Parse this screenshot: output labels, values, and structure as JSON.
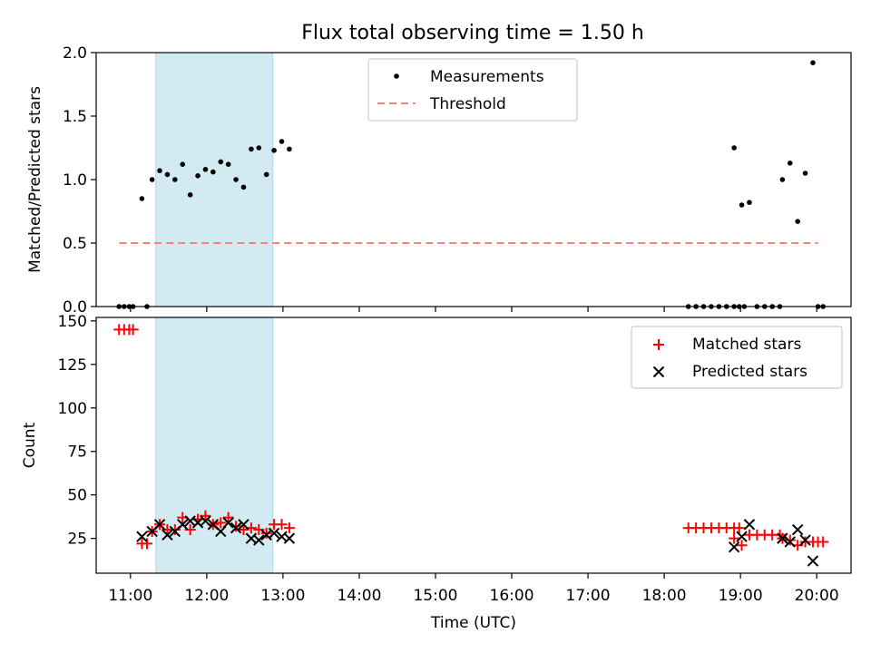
{
  "figure": {
    "title": "Flux total observing time = 1.50 h"
  },
  "colors": {
    "highlight": "#add8e6",
    "threshold": "#ff7f7f",
    "matched": "#ff0000",
    "predicted": "#000000",
    "measurement": "#000000"
  },
  "chart_data": [
    {
      "type": "scatter",
      "ylabel": "Matched/Predicted stars",
      "xlim": [
        "10:33",
        "20:27"
      ],
      "ylim": [
        0,
        2.0
      ],
      "y_ticks": [
        0.0,
        0.5,
        1.0,
        1.5,
        2.0
      ],
      "y_tick_labels": [
        "0.0",
        "0.5",
        "1.0",
        "1.5",
        "2.0"
      ],
      "highlight_span": [
        "11:20",
        "12:52"
      ],
      "legend": {
        "position": "upper-center",
        "entries": [
          {
            "label": "Measurements",
            "marker": "dot"
          },
          {
            "label": "Threshold",
            "marker": "dashed-line"
          }
        ]
      },
      "threshold": {
        "name": "Threshold",
        "y": 0.5,
        "x": [
          "10:51",
          "20:01"
        ]
      },
      "series": [
        {
          "name": "Measurements",
          "points": [
            [
              "10:51",
              0
            ],
            [
              "10:55",
              0
            ],
            [
              "10:59",
              0
            ],
            [
              "11:02",
              0
            ],
            [
              "11:09",
              0.85
            ],
            [
              "11:13",
              0
            ],
            [
              "11:17",
              1.0
            ],
            [
              "11:23",
              1.07
            ],
            [
              "11:29",
              1.04
            ],
            [
              "11:35",
              1.0
            ],
            [
              "11:41",
              1.12
            ],
            [
              "11:47",
              0.88
            ],
            [
              "11:53",
              1.03
            ],
            [
              "11:59",
              1.08
            ],
            [
              "12:05",
              1.06
            ],
            [
              "12:11",
              1.14
            ],
            [
              "12:17",
              1.12
            ],
            [
              "12:23",
              1.0
            ],
            [
              "12:29",
              0.94
            ],
            [
              "12:35",
              1.24
            ],
            [
              "12:41",
              1.25
            ],
            [
              "12:47",
              1.04
            ],
            [
              "12:53",
              1.23
            ],
            [
              "12:59",
              1.3
            ],
            [
              "13:05",
              1.24
            ],
            [
              "18:19",
              0
            ],
            [
              "18:25",
              0
            ],
            [
              "18:31",
              0
            ],
            [
              "18:37",
              0
            ],
            [
              "18:43",
              0
            ],
            [
              "18:49",
              0
            ],
            [
              "18:55",
              0
            ],
            [
              "18:59",
              0
            ],
            [
              "19:03",
              0
            ],
            [
              "18:55",
              1.25
            ],
            [
              "19:01",
              0.8
            ],
            [
              "19:07",
              0.82
            ],
            [
              "19:13",
              0
            ],
            [
              "19:19",
              0
            ],
            [
              "19:25",
              0
            ],
            [
              "19:31",
              0
            ],
            [
              "19:33",
              1.0
            ],
            [
              "19:39",
              1.13
            ],
            [
              "19:45",
              0.67
            ],
            [
              "19:51",
              1.05
            ],
            [
              "19:57",
              1.92
            ],
            [
              "20:01",
              0
            ],
            [
              "20:05",
              0
            ]
          ]
        }
      ]
    },
    {
      "type": "scatter",
      "ylabel": "Count",
      "xlabel": "Time (UTC)",
      "xlim": [
        "10:33",
        "20:27"
      ],
      "ylim": [
        5,
        152
      ],
      "y_ticks": [
        25,
        50,
        75,
        100,
        125,
        150
      ],
      "x_ticks": [
        "11:00",
        "12:00",
        "13:00",
        "14:00",
        "15:00",
        "16:00",
        "17:00",
        "18:00",
        "19:00",
        "20:00"
      ],
      "highlight_span": [
        "11:20",
        "12:52"
      ],
      "legend": {
        "position": "upper-right",
        "entries": [
          {
            "label": "Matched stars",
            "marker": "plus"
          },
          {
            "label": "Predicted stars",
            "marker": "x"
          }
        ]
      },
      "series": [
        {
          "name": "Matched stars",
          "points": [
            [
              "10:51",
              145
            ],
            [
              "10:55",
              145
            ],
            [
              "10:59",
              145
            ],
            [
              "11:02",
              145
            ],
            [
              "11:09",
              22
            ],
            [
              "11:13",
              22
            ],
            [
              "11:17",
              29
            ],
            [
              "11:23",
              33
            ],
            [
              "11:29",
              30
            ],
            [
              "11:35",
              30
            ],
            [
              "11:41",
              37
            ],
            [
              "11:47",
              30
            ],
            [
              "11:53",
              36
            ],
            [
              "11:59",
              38
            ],
            [
              "12:05",
              33
            ],
            [
              "12:11",
              34
            ],
            [
              "12:17",
              37
            ],
            [
              "12:23",
              32
            ],
            [
              "12:29",
              30
            ],
            [
              "12:35",
              31
            ],
            [
              "12:41",
              30
            ],
            [
              "12:47",
              28
            ],
            [
              "12:53",
              33
            ],
            [
              "12:59",
              33
            ],
            [
              "13:05",
              31
            ],
            [
              "18:19",
              31
            ],
            [
              "18:25",
              31
            ],
            [
              "18:31",
              31
            ],
            [
              "18:37",
              31
            ],
            [
              "18:43",
              31
            ],
            [
              "18:49",
              31
            ],
            [
              "18:55",
              31
            ],
            [
              "18:59",
              31
            ],
            [
              "18:55",
              25
            ],
            [
              "19:01",
              21
            ],
            [
              "19:07",
              27
            ],
            [
              "19:13",
              27
            ],
            [
              "19:19",
              27
            ],
            [
              "19:25",
              27
            ],
            [
              "19:31",
              27
            ],
            [
              "19:33",
              25
            ],
            [
              "19:39",
              24
            ],
            [
              "19:45",
              21
            ],
            [
              "19:51",
              23
            ],
            [
              "19:57",
              23
            ],
            [
              "20:01",
              23
            ],
            [
              "20:05",
              23
            ]
          ]
        },
        {
          "name": "Predicted stars",
          "points": [
            [
              "11:09",
              26
            ],
            [
              "11:17",
              29
            ],
            [
              "11:23",
              33
            ],
            [
              "11:29",
              27
            ],
            [
              "11:35",
              29
            ],
            [
              "11:41",
              33
            ],
            [
              "11:47",
              35
            ],
            [
              "11:53",
              34
            ],
            [
              "11:59",
              35
            ],
            [
              "12:05",
              33
            ],
            [
              "12:11",
              29
            ],
            [
              "12:17",
              34
            ],
            [
              "12:23",
              31
            ],
            [
              "12:29",
              33
            ],
            [
              "12:35",
              25
            ],
            [
              "12:41",
              24
            ],
            [
              "12:47",
              27
            ],
            [
              "12:53",
              28
            ],
            [
              "12:59",
              26
            ],
            [
              "13:05",
              25
            ],
            [
              "18:55",
              20
            ],
            [
              "19:01",
              26
            ],
            [
              "19:07",
              33
            ],
            [
              "19:33",
              25
            ],
            [
              "19:39",
              23
            ],
            [
              "19:45",
              30
            ],
            [
              "19:51",
              24
            ],
            [
              "19:57",
              12
            ]
          ]
        }
      ]
    }
  ]
}
